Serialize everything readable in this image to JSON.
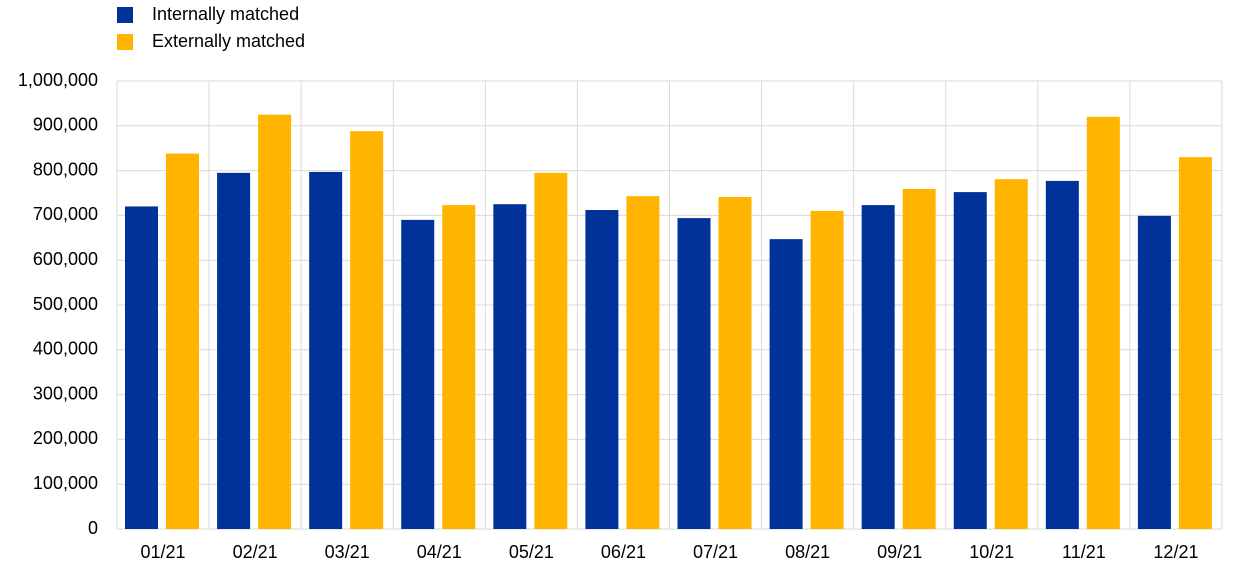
{
  "chart_data": {
    "type": "bar",
    "categories": [
      "01/21",
      "02/21",
      "03/21",
      "04/21",
      "05/21",
      "06/21",
      "07/21",
      "08/21",
      "09/21",
      "10/21",
      "11/21",
      "12/21"
    ],
    "series": [
      {
        "name": "Internally matched",
        "color": "#003299",
        "values": [
          720000,
          795000,
          797000,
          690000,
          725000,
          712000,
          694000,
          647000,
          723000,
          752000,
          777000,
          699000
        ]
      },
      {
        "name": "Externally matched",
        "color": "#ffb400",
        "values": [
          838000,
          925000,
          888000,
          723000,
          795000,
          743000,
          741000,
          710000,
          759000,
          781000,
          920000,
          830000
        ]
      }
    ],
    "ylim": [
      0,
      1000000
    ],
    "yticks": [
      0,
      {
        "value": 100000,
        "label": "100,000"
      },
      {
        "value": 200000,
        "label": "200,000"
      },
      {
        "value": 300000,
        "label": "300,000"
      },
      {
        "value": 400000,
        "label": "400,000"
      },
      {
        "value": 500000,
        "label": "500,000"
      },
      {
        "value": 600000,
        "label": "600,000"
      },
      {
        "value": 700000,
        "label": "700,000"
      },
      {
        "value": 800000,
        "label": "800,000"
      },
      {
        "value": 900000,
        "label": "900,000"
      },
      {
        "value": 1000000,
        "label": "1,000,000"
      }
    ],
    "grid": true
  }
}
